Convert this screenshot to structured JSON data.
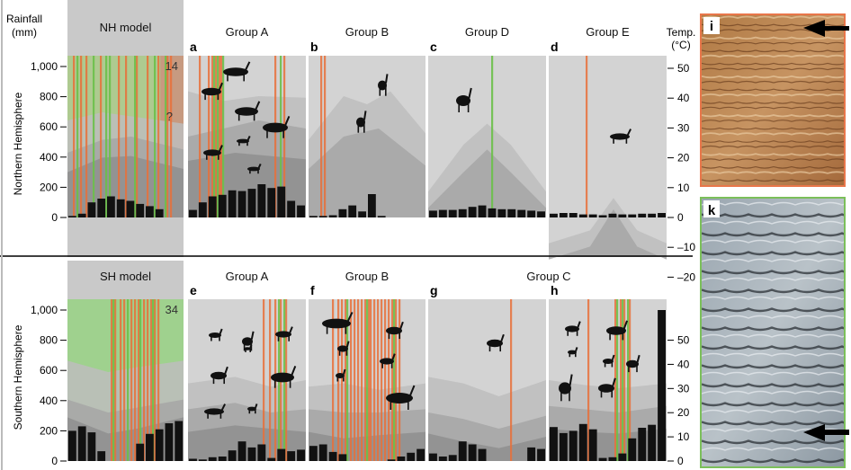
{
  "figure": {
    "rainfall_axis_label": [
      "Rainfall",
      "(mm)"
    ],
    "temp_axis_label": [
      "Temp.",
      "(°C)"
    ],
    "nh_row_label": "Northern Hemisphere",
    "sh_row_label": "Southern Hemisphere",
    "rain_ticks": [
      "0",
      "200",
      "400",
      "600",
      "800",
      "1,000"
    ],
    "temp_ticks": [
      "–20",
      "–10",
      "0",
      "10",
      "20",
      "30",
      "40",
      "50"
    ],
    "panel_i_label": "i",
    "panel_k_label": "k"
  },
  "colors": {
    "orange_bar": "#e8703a",
    "green_bar": "#6cc04a",
    "frame_i": "#e8764a",
    "frame_k": "#7bbf5a"
  },
  "chart_data": [
    {
      "type": "bar",
      "id": "nh-model",
      "header": "NH model",
      "count_label": "14",
      "extra_label": "?",
      "months": 12,
      "rainfall": [
        10,
        25,
        100,
        125,
        140,
        120,
        110,
        90,
        75,
        55,
        0,
        0
      ],
      "ylim": [
        0,
        1100
      ]
    },
    {
      "type": "bar",
      "id": "nh-group-a",
      "header": "Group A",
      "letter": "a",
      "months": 12,
      "rainfall": [
        50,
        100,
        140,
        150,
        180,
        175,
        190,
        220,
        195,
        205,
        110,
        80
      ],
      "ylim": [
        0,
        1100
      ]
    },
    {
      "type": "bar",
      "id": "nh-group-b",
      "header": "Group B",
      "letter": "b",
      "months": 12,
      "rainfall": [
        10,
        10,
        15,
        55,
        80,
        40,
        155,
        10,
        0,
        0,
        0,
        0
      ],
      "ylim": [
        0,
        1100
      ]
    },
    {
      "type": "bar",
      "id": "nh-group-d",
      "header": "Group D",
      "letter": "c",
      "months": 12,
      "rainfall": [
        45,
        50,
        50,
        55,
        70,
        80,
        60,
        55,
        55,
        50,
        45,
        40
      ],
      "ylim": [
        0,
        1100
      ]
    },
    {
      "type": "bar",
      "id": "nh-group-e",
      "header": "Group E",
      "letter": "d",
      "months": 12,
      "rainfall": [
        25,
        30,
        30,
        20,
        20,
        15,
        25,
        20,
        20,
        25,
        25,
        30
      ],
      "ylim": [
        0,
        1100
      ]
    },
    {
      "type": "bar",
      "id": "sh-model",
      "header": "SH model",
      "count_label": "34",
      "months": 12,
      "rainfall": [
        200,
        230,
        190,
        65,
        0,
        0,
        0,
        115,
        180,
        210,
        250,
        265
      ],
      "ylim": [
        0,
        1100
      ]
    },
    {
      "type": "bar",
      "id": "sh-group-a",
      "header": "Group A",
      "letter": "e",
      "months": 12,
      "rainfall": [
        15,
        10,
        25,
        30,
        70,
        130,
        90,
        110,
        20,
        80,
        65,
        75
      ],
      "ylim": [
        0,
        1100
      ]
    },
    {
      "type": "bar",
      "id": "sh-group-b",
      "header": "Group B",
      "letter": "f",
      "months": 12,
      "rainfall": [
        100,
        110,
        60,
        45,
        0,
        0,
        0,
        0,
        10,
        30,
        55,
        80
      ],
      "ylim": [
        0,
        1100
      ]
    },
    {
      "type": "bar",
      "id": "sh-group-c-g",
      "header": "Group C",
      "letter": "g",
      "months": 12,
      "rainfall": [
        50,
        30,
        40,
        130,
        110,
        80,
        0,
        0,
        0,
        0,
        90,
        80
      ],
      "ylim": [
        0,
        1100
      ]
    },
    {
      "type": "bar",
      "id": "sh-group-c-h",
      "letter": "h",
      "months": 12,
      "rainfall": [
        225,
        185,
        200,
        245,
        210,
        20,
        25,
        50,
        150,
        220,
        240,
        1000
      ],
      "ylim": [
        0,
        1100
      ]
    }
  ]
}
